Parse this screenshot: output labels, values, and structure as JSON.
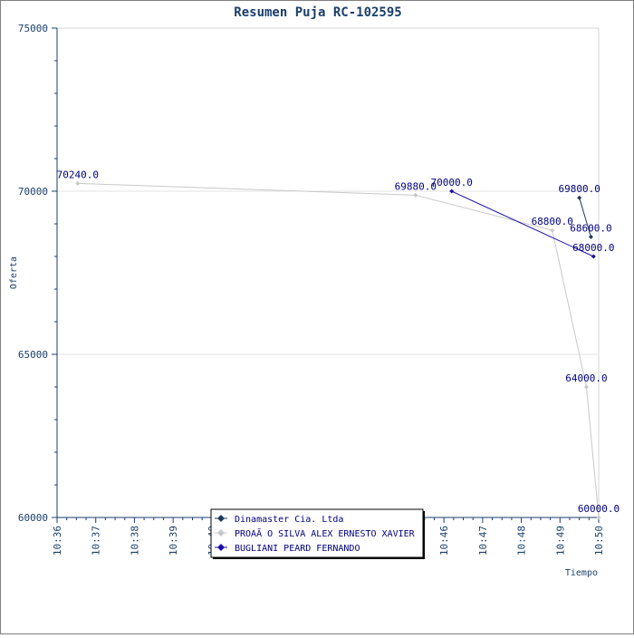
{
  "chart_data": {
    "type": "line",
    "title": "Resumen Puja RC-102595",
    "xlabel": "Tiempo",
    "ylabel": "Oferta",
    "ylim": [
      60000,
      75000
    ],
    "y_ticks": [
      60000,
      65000,
      70000,
      75000
    ],
    "y_tick_labels": [
      "60000",
      "65000",
      "70000",
      "75000"
    ],
    "x_range": [
      "10:36",
      "10:50"
    ],
    "x_ticks": [
      "10:36",
      "10:37",
      "10:38",
      "10:39",
      "10:40",
      "10:41",
      "10:42",
      "10:43",
      "10:44",
      "10:45",
      "10:46",
      "10:47",
      "10:48",
      "10:49",
      "10:50"
    ],
    "grid": "horizontal",
    "legend_position": "bottom-center",
    "series": [
      {
        "name": "Dinamaster Cia. Ltda",
        "color": "#1f3a5a",
        "points": [
          {
            "t": "10:49:30",
            "y": 69800,
            "label": "69800.0"
          },
          {
            "t": "10:49:48",
            "y": 68600,
            "label": "68600.0"
          }
        ]
      },
      {
        "name": "PROAÃ O SILVA ALEX ERNESTO XAVIER",
        "color": "#c8c8c8",
        "points": [
          {
            "t": "10:36:32",
            "y": 70240,
            "label": "70240.0"
          },
          {
            "t": "10:45:16",
            "y": 69880,
            "label": "69880.0"
          },
          {
            "t": "10:48:48",
            "y": 68800,
            "label": "68800.0"
          },
          {
            "t": "10:49:41",
            "y": 64000,
            "label": "64000.0"
          },
          {
            "t": "10:50:00",
            "y": 60000,
            "label": "60000.0"
          }
        ]
      },
      {
        "name": "BUGLIANI PEARD FERNANDO",
        "color": "#1a0fa8",
        "points": [
          {
            "t": "10:46:12",
            "y": 70000,
            "label": "70000.0"
          },
          {
            "t": "10:49:52",
            "y": 68000,
            "label": "68000.0"
          }
        ]
      }
    ]
  }
}
